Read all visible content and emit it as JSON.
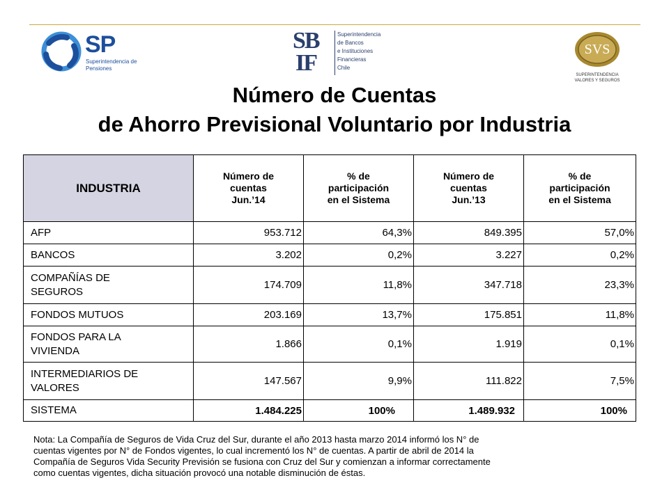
{
  "logos": {
    "sp": {
      "abbr": "SP",
      "line1": "Superintendencia de",
      "line2": "Pensiones"
    },
    "sbif": {
      "mark_top": "SB",
      "mark_bottom": "IF",
      "lines": [
        "Superintendencia",
        "de Bancos",
        "e Instituciones",
        "Financieras",
        "Chile"
      ]
    },
    "svs": {
      "abbr": "SVS",
      "line1": "SUPERINTENDENCIA",
      "line2": "VALORES Y SEGUROS"
    }
  },
  "title": {
    "line1": "Número de Cuentas",
    "line2": "de Ahorro Previsional Voluntario por Industria"
  },
  "table": {
    "headers": [
      {
        "lines": [
          "INDUSTRIA"
        ]
      },
      {
        "lines": [
          "Número de",
          "cuentas",
          "Jun.’14"
        ]
      },
      {
        "lines": [
          "% de",
          "participación",
          "en el Sistema"
        ]
      },
      {
        "lines": [
          "Número de",
          "cuentas",
          "Jun.’13"
        ]
      },
      {
        "lines": [
          "% de",
          "participación",
          "en el Sistema"
        ]
      }
    ],
    "rows": [
      {
        "label": [
          "AFP"
        ],
        "values": [
          "953.712",
          "64,3%",
          "849.395",
          "57,0%"
        ]
      },
      {
        "label": [
          "BANCOS"
        ],
        "values": [
          "3.202",
          "0,2%",
          "3.227",
          "0,2%"
        ]
      },
      {
        "label": [
          "COMPAÑÍAS DE",
          "SEGUROS"
        ],
        "values": [
          "174.709",
          "11,8%",
          "347.718",
          "23,3%"
        ]
      },
      {
        "label": [
          "FONDOS MUTUOS"
        ],
        "values": [
          "203.169",
          "13,7%",
          "175.851",
          "11,8%"
        ]
      },
      {
        "label": [
          "FONDOS PARA LA",
          "VIVIENDA"
        ],
        "values": [
          "1.866",
          "0,1%",
          "1.919",
          "0,1%"
        ]
      },
      {
        "label": [
          "INTERMEDIARIOS DE",
          "VALORES"
        ],
        "values": [
          "147.567",
          "9,9%",
          "111.822",
          "7,5%"
        ]
      },
      {
        "label": [
          "SISTEMA"
        ],
        "values": [
          "1.484.225",
          "100%",
          "1.489.932",
          "100%"
        ],
        "total": true
      }
    ]
  },
  "note": {
    "lines": [
      "Nota: La Compañía de Seguros de Vida Cruz del Sur, durante el año 2013 hasta marzo 2014 informó los  N° de",
      "cuentas vigentes por N° de Fondos vigentes, lo cual incrementó los N° de cuentas. A partir de abril de 2014  la",
      "Compañía de Seguros  Vida Security Previsión se fusiona con Cruz del Sur y comienzan a informar correctamente",
      "como  cuentas vigentes, dicha situación provocó una notable disminución de éstas."
    ]
  },
  "colors": {
    "rule": "#c9a640",
    "header_fill": "#d4d4e2",
    "sp_blue": "#1c4f9c",
    "sbif_navy": "#2a3f6d",
    "svs_gold": "#a8892f"
  }
}
